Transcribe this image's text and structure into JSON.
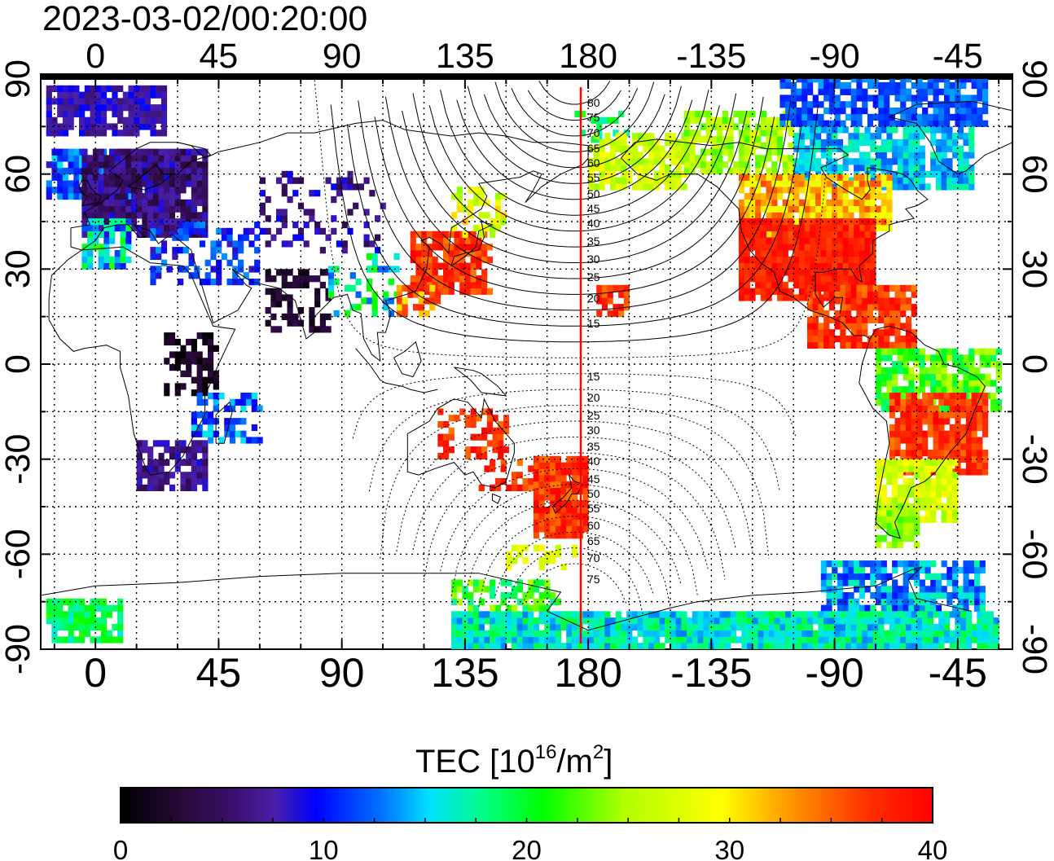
{
  "timestamp": "2023-03-02/00:20:00",
  "map": {
    "lon_ticks": [
      "0",
      "45",
      "90",
      "135",
      "180",
      "-135",
      "-90",
      "-45"
    ],
    "lat_ticks": [
      "90",
      "60",
      "30",
      "0",
      "-30",
      "-60",
      "-90"
    ],
    "lon_range": [
      -20,
      335
    ],
    "lat_range": [
      -90,
      90
    ],
    "grid_spacing_deg": 15,
    "terminator_lon": 175,
    "terminator_color": "#ff0000",
    "sza_labels": [
      "80",
      "75",
      "70",
      "65",
      "60",
      "55",
      "50",
      "45",
      "40",
      "35",
      "30",
      "25",
      "20",
      "15",
      "15",
      "20",
      "25",
      "30",
      "35",
      "40",
      "45",
      "50",
      "55",
      "60",
      "65",
      "70",
      "75"
    ]
  },
  "colorbar": {
    "title_main": "TEC  [10",
    "title_sup1": "16",
    "title_mid": "/m",
    "title_sup2": "2",
    "title_end": "]",
    "tick_labels": [
      "0",
      "10",
      "20",
      "30",
      "40"
    ],
    "range": [
      0,
      40
    ],
    "colors": [
      "#000000",
      "#2a0a3a",
      "#3a0f6e",
      "#4a1fa8",
      "#0000ff",
      "#0070ff",
      "#00e0ff",
      "#00ff80",
      "#00ff00",
      "#b0ff00",
      "#ffff00",
      "#ff9000",
      "#ff3000",
      "#ff0000"
    ]
  }
}
